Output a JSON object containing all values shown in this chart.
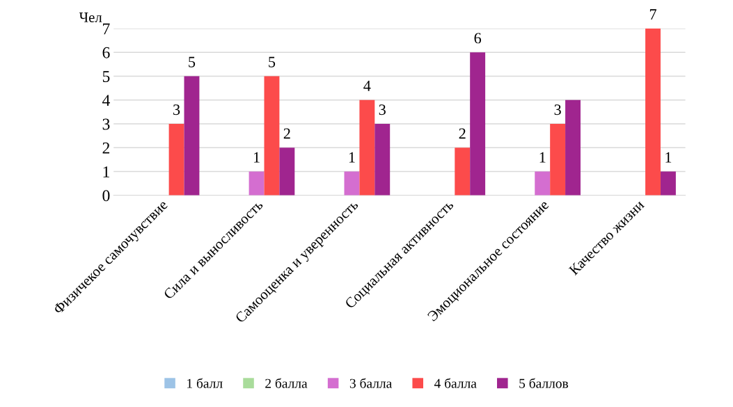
{
  "chart_data": {
    "type": "bar",
    "ylabel": "Чел",
    "categories": [
      "Физичекое самочувствие",
      "Сила и выносливость",
      "Самооценка и уверенность",
      "Социальная активность",
      "Эмоциональное состояние",
      "Качество жизни"
    ],
    "series": [
      {
        "name": "1 балл",
        "color": "#9dc3e6",
        "values": [
          0,
          0,
          0,
          0,
          0,
          0
        ],
        "value_labels": [
          null,
          null,
          null,
          null,
          null,
          null
        ]
      },
      {
        "name": "2 балла",
        "color": "#a9dc9b",
        "values": [
          0,
          0,
          0,
          0,
          0,
          0
        ],
        "value_labels": [
          null,
          null,
          null,
          null,
          null,
          null
        ]
      },
      {
        "name": "3 балла",
        "color": "#d46ed0",
        "values": [
          0,
          1,
          1,
          0,
          1,
          0
        ],
        "value_labels": [
          null,
          "1",
          "1",
          null,
          "1",
          null
        ]
      },
      {
        "name": "4 балла",
        "color": "#fc4b4b",
        "values": [
          3,
          5,
          4,
          2,
          3,
          7
        ],
        "value_labels": [
          "3",
          "5",
          "4",
          "2",
          "3",
          "7"
        ]
      },
      {
        "name": "5 баллов",
        "color": "#a0258f",
        "values": [
          5,
          2,
          3,
          6,
          4,
          1
        ],
        "value_labels": [
          "5",
          "2",
          "3",
          "6",
          null,
          "1"
        ]
      }
    ],
    "ylim": [
      0,
      7
    ],
    "yticks": [
      0,
      1,
      2,
      3,
      4,
      5,
      6,
      7
    ],
    "grid": "y",
    "legend": "bottom"
  }
}
